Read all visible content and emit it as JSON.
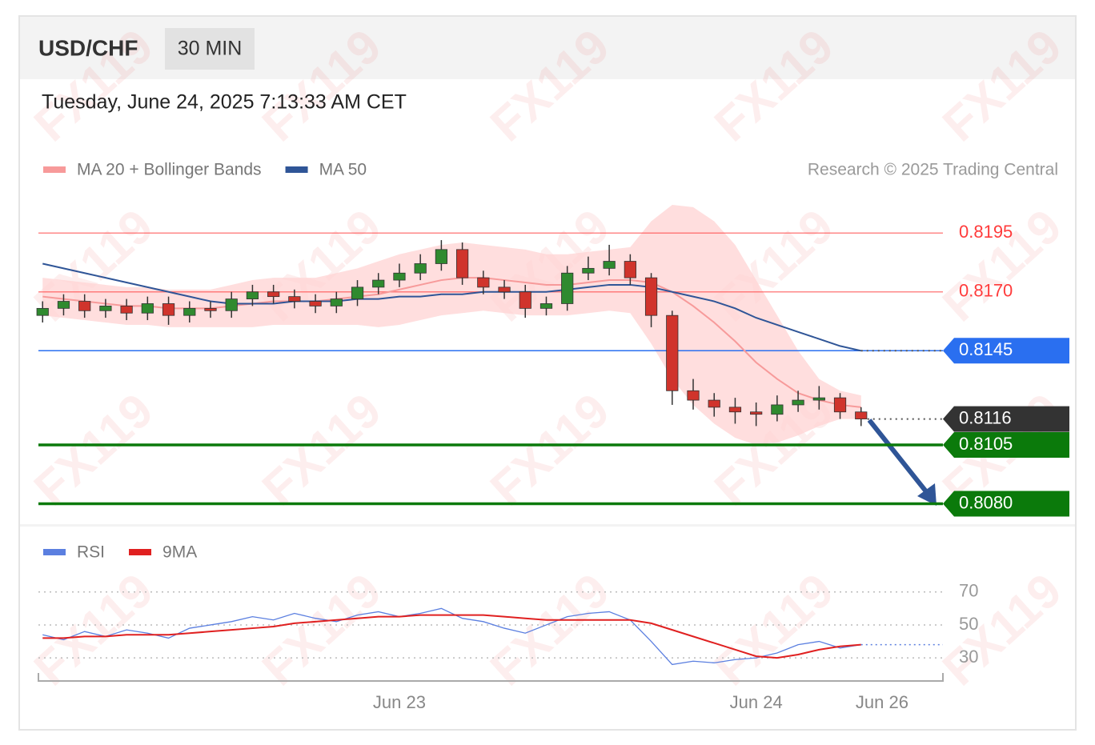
{
  "chart_data": {
    "type": "candlestick",
    "title": "USD/CHF",
    "timeframe": "30 MIN",
    "subtitle": "Tuesday, June 24, 2025 7:13:33 AM CET",
    "source": "Research © 2025 Trading Central",
    "watermark": "FX119",
    "xlim": [
      -0.2,
      42.9
    ],
    "xticks": [
      {
        "value": 17,
        "label": "Jun 23"
      },
      {
        "value": 34,
        "label": "Jun 24"
      },
      {
        "value": 40,
        "label": "Jun 26"
      }
    ],
    "ylim": [
      0.8072,
      0.8208
    ],
    "up_color": "#2f8a2f",
    "down_color": "#d0342c",
    "open": [
      0.816,
      0.8163,
      0.8166,
      0.8162,
      0.8164,
      0.8161,
      0.8165,
      0.816,
      0.8163,
      0.8162,
      0.8167,
      0.817,
      0.8168,
      0.8166,
      0.8164,
      0.8167,
      0.8172,
      0.8175,
      0.8178,
      0.8182,
      0.8188,
      0.8176,
      0.8172,
      0.817,
      0.8163,
      0.8165,
      0.8178,
      0.818,
      0.8183,
      0.8176,
      0.816,
      0.8128,
      0.8124,
      0.8121,
      0.8119,
      0.8118,
      0.8122,
      0.8124,
      0.8125,
      0.8119
    ],
    "high": [
      0.8166,
      0.8169,
      0.8169,
      0.8167,
      0.8167,
      0.8168,
      0.8168,
      0.8166,
      0.8166,
      0.817,
      0.8173,
      0.8173,
      0.8171,
      0.8169,
      0.817,
      0.8175,
      0.8178,
      0.8182,
      0.8186,
      0.8192,
      0.8191,
      0.8179,
      0.8175,
      0.8173,
      0.8168,
      0.8181,
      0.8185,
      0.819,
      0.8186,
      0.8178,
      0.8162,
      0.8133,
      0.8127,
      0.8125,
      0.8123,
      0.8126,
      0.8128,
      0.813,
      0.8127,
      0.8121
    ],
    "low": [
      0.8157,
      0.816,
      0.8159,
      0.8159,
      0.8158,
      0.8158,
      0.8156,
      0.8157,
      0.8159,
      0.8159,
      0.8164,
      0.8165,
      0.8163,
      0.8161,
      0.8161,
      0.8164,
      0.8169,
      0.8172,
      0.8175,
      0.8179,
      0.8173,
      0.8169,
      0.8167,
      0.8159,
      0.816,
      0.8162,
      0.8175,
      0.8177,
      0.8173,
      0.8155,
      0.8122,
      0.812,
      0.8117,
      0.8114,
      0.8113,
      0.8115,
      0.8119,
      0.812,
      0.8116,
      0.8113
    ],
    "close": [
      0.8163,
      0.8166,
      0.8162,
      0.8164,
      0.8161,
      0.8165,
      0.816,
      0.8163,
      0.8162,
      0.8167,
      0.817,
      0.8168,
      0.8166,
      0.8164,
      0.8167,
      0.8172,
      0.8175,
      0.8178,
      0.8182,
      0.8188,
      0.8176,
      0.8172,
      0.817,
      0.8163,
      0.8165,
      0.8178,
      0.818,
      0.8183,
      0.8176,
      0.816,
      0.8128,
      0.8124,
      0.8121,
      0.8119,
      0.8118,
      0.8122,
      0.8124,
      0.8125,
      0.8119,
      0.8116
    ],
    "overlays": [
      {
        "name": "MA 20 + Bollinger Bands",
        "color": "#f79a9a",
        "band_color": "#ffd3d3",
        "values": [
          0.8168,
          0.8167,
          0.8166,
          0.8165,
          0.8164,
          0.8164,
          0.8163,
          0.8163,
          0.8163,
          0.8164,
          0.8165,
          0.8166,
          0.8166,
          0.8166,
          0.8167,
          0.8168,
          0.8169,
          0.8171,
          0.8173,
          0.8175,
          0.8176,
          0.8176,
          0.8175,
          0.8174,
          0.8173,
          0.8173,
          0.8174,
          0.8175,
          0.8175,
          0.8174,
          0.817,
          0.8164,
          0.8157,
          0.8149,
          0.814,
          0.8133,
          0.8127,
          0.8124,
          0.8122,
          0.8121
        ],
        "upper": [
          0.8176,
          0.8175,
          0.8174,
          0.8173,
          0.8172,
          0.8172,
          0.8171,
          0.8171,
          0.8171,
          0.8173,
          0.8175,
          0.8176,
          0.8176,
          0.8176,
          0.8178,
          0.818,
          0.8183,
          0.8186,
          0.8188,
          0.819,
          0.8191,
          0.819,
          0.8189,
          0.8188,
          0.8186,
          0.8186,
          0.8187,
          0.8188,
          0.8189,
          0.82,
          0.8207,
          0.8206,
          0.82,
          0.819,
          0.8175,
          0.816,
          0.8145,
          0.8133,
          0.8128,
          0.8126
        ],
        "lower": [
          0.816,
          0.8159,
          0.8158,
          0.8157,
          0.8156,
          0.8156,
          0.8155,
          0.8155,
          0.8155,
          0.8155,
          0.8155,
          0.8156,
          0.8156,
          0.8156,
          0.8156,
          0.8156,
          0.8155,
          0.8156,
          0.8158,
          0.816,
          0.8161,
          0.8162,
          0.8161,
          0.816,
          0.816,
          0.816,
          0.8161,
          0.8162,
          0.8161,
          0.8148,
          0.8133,
          0.8122,
          0.8114,
          0.8108,
          0.8105,
          0.8106,
          0.8109,
          0.8113,
          0.8116,
          0.8116
        ]
      },
      {
        "name": "MA 50",
        "color": "#2f5597",
        "values": [
          0.8182,
          0.818,
          0.8178,
          0.8176,
          0.8174,
          0.8172,
          0.817,
          0.8168,
          0.8166,
          0.8165,
          0.8165,
          0.8165,
          0.8166,
          0.8166,
          0.8166,
          0.8167,
          0.8167,
          0.8168,
          0.8168,
          0.8169,
          0.8169,
          0.817,
          0.817,
          0.817,
          0.817,
          0.8171,
          0.8172,
          0.8173,
          0.8173,
          0.8172,
          0.817,
          0.8168,
          0.8166,
          0.8163,
          0.8159,
          0.8156,
          0.8153,
          0.815,
          0.8147,
          0.8145
        ]
      }
    ],
    "levels": [
      {
        "value": 0.8195,
        "color": "#ff3b3b",
        "badge": false,
        "line": "solid"
      },
      {
        "value": 0.817,
        "label": "0.8170",
        "color": "#ff3b3b",
        "badge": false,
        "line": "solid"
      },
      {
        "value": 0.8145,
        "color": "#2a6ff0",
        "badge": true,
        "line": "solid"
      },
      {
        "value": 0.8116,
        "color": "#333333",
        "badge": true,
        "line": "dotted"
      },
      {
        "value": 0.8105,
        "color": "#0b7a0b",
        "badge": true,
        "line": "thick"
      },
      {
        "value": 0.808,
        "label": "0.8080",
        "color": "#0b7a0b",
        "badge": true,
        "line": "thick"
      }
    ],
    "indicator": {
      "ylim": [
        16,
        82
      ],
      "yticks": [
        30,
        50,
        70
      ],
      "series": [
        {
          "name": "RSI",
          "color": "#5b7fe0",
          "values": [
            44,
            41,
            46,
            43,
            47,
            45,
            42,
            48,
            50,
            52,
            55,
            53,
            57,
            54,
            52,
            56,
            58,
            55,
            57,
            60,
            54,
            52,
            48,
            45,
            50,
            55,
            57,
            58,
            53,
            40,
            26,
            28,
            27,
            29,
            30,
            33,
            38,
            40,
            36,
            38
          ]
        },
        {
          "name": "9MA",
          "color": "#e02020",
          "values": [
            42,
            42,
            43,
            43,
            44,
            44,
            44,
            45,
            46,
            47,
            48,
            49,
            51,
            52,
            53,
            54,
            55,
            55,
            56,
            56,
            56,
            56,
            55,
            54,
            53,
            53,
            53,
            53,
            53,
            51,
            47,
            43,
            39,
            35,
            31,
            30,
            32,
            35,
            37,
            38
          ]
        }
      ]
    }
  }
}
